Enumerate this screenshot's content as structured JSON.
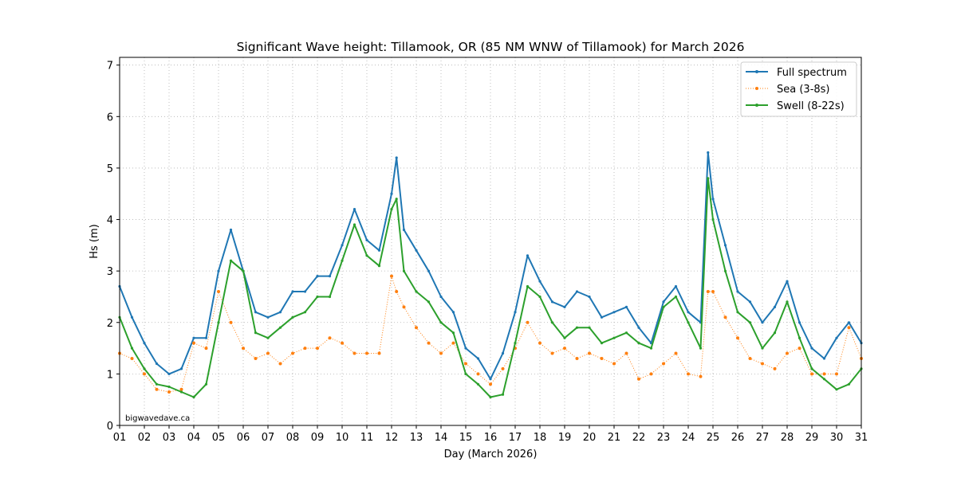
{
  "chart_data": {
    "type": "line",
    "title": "Significant Wave height: Tillamook, OR (85 NM WNW of Tillamook) for March 2026",
    "xlabel": "Day (March 2026)",
    "ylabel": "Hs (m)",
    "xlim": [
      1,
      31
    ],
    "ylim": [
      0,
      7.15
    ],
    "grid": true,
    "legend_position": "top-right",
    "watermark": "bigwavedave.ca",
    "x_tick_values": [
      1,
      2,
      3,
      4,
      5,
      6,
      7,
      8,
      9,
      10,
      11,
      12,
      13,
      14,
      15,
      16,
      17,
      18,
      19,
      20,
      21,
      22,
      23,
      24,
      25,
      26,
      27,
      28,
      29,
      30,
      31
    ],
    "x_tick_labels": [
      "01",
      "02",
      "03",
      "04",
      "05",
      "06",
      "07",
      "08",
      "09",
      "10",
      "11",
      "12",
      "13",
      "14",
      "15",
      "16",
      "17",
      "18",
      "19",
      "20",
      "21",
      "22",
      "23",
      "24",
      "25",
      "26",
      "27",
      "28",
      "29",
      "30",
      "31"
    ],
    "y_tick_values": [
      0,
      1,
      2,
      3,
      4,
      5,
      6,
      7
    ],
    "y_tick_labels": [
      "0",
      "1",
      "2",
      "3",
      "4",
      "5",
      "6",
      "7"
    ],
    "x": [
      1,
      1.5,
      2,
      2.5,
      3,
      3.5,
      4,
      4.5,
      5,
      5.5,
      6,
      6.5,
      7,
      7.5,
      8,
      8.5,
      9,
      9.5,
      10,
      10.5,
      11,
      11.5,
      12,
      12.2,
      12.5,
      13,
      13.5,
      14,
      14.5,
      15,
      15.5,
      16,
      16.5,
      17,
      17.5,
      18,
      18.5,
      19,
      19.5,
      20,
      20.5,
      21,
      21.5,
      22,
      22.5,
      23,
      23.5,
      24,
      24.5,
      24.8,
      25,
      25.5,
      26,
      26.5,
      27,
      27.5,
      28,
      28.5,
      29,
      29.5,
      30,
      30.5,
      31
    ],
    "series": [
      {
        "name": "Full spectrum",
        "color": "#1f77b4",
        "style": "solid",
        "values": [
          2.7,
          2.1,
          1.6,
          1.2,
          1.0,
          1.1,
          1.7,
          1.7,
          3.0,
          3.8,
          3.0,
          2.2,
          2.1,
          2.2,
          2.6,
          2.6,
          2.9,
          2.9,
          3.5,
          4.2,
          3.6,
          3.4,
          4.5,
          5.2,
          3.8,
          3.4,
          3.0,
          2.5,
          2.2,
          1.5,
          1.3,
          0.9,
          1.4,
          2.2,
          3.3,
          2.8,
          2.4,
          2.3,
          2.6,
          2.5,
          2.1,
          2.2,
          2.3,
          1.9,
          1.6,
          2.4,
          2.7,
          2.2,
          2.0,
          5.3,
          4.4,
          3.5,
          2.6,
          2.4,
          2.0,
          2.3,
          2.8,
          2.0,
          1.5,
          1.3,
          1.7,
          2.0,
          1.6
        ]
      },
      {
        "name": "Sea (3-8s)",
        "color": "#ff7f0e",
        "style": "dotted",
        "values": [
          1.4,
          1.3,
          1.0,
          0.7,
          0.65,
          0.7,
          1.6,
          1.5,
          2.6,
          2.0,
          1.5,
          1.3,
          1.4,
          1.2,
          1.4,
          1.5,
          1.5,
          1.7,
          1.6,
          1.4,
          1.4,
          1.4,
          2.9,
          2.6,
          2.3,
          1.9,
          1.6,
          1.4,
          1.6,
          1.2,
          1.0,
          0.8,
          1.1,
          1.5,
          2.0,
          1.6,
          1.4,
          1.5,
          1.3,
          1.4,
          1.3,
          1.2,
          1.4,
          0.9,
          1.0,
          1.2,
          1.4,
          1.0,
          0.95,
          2.6,
          2.6,
          2.1,
          1.7,
          1.3,
          1.2,
          1.1,
          1.4,
          1.5,
          1.0,
          1.0,
          1.0,
          1.9,
          1.3
        ]
      },
      {
        "name": "Swell (8-22s)",
        "color": "#2ca02c",
        "style": "solid",
        "values": [
          2.1,
          1.5,
          1.1,
          0.8,
          0.75,
          0.65,
          0.55,
          0.8,
          2.0,
          3.2,
          3.0,
          1.8,
          1.7,
          1.9,
          2.1,
          2.2,
          2.5,
          2.5,
          3.2,
          3.9,
          3.3,
          3.1,
          4.2,
          4.4,
          3.0,
          2.6,
          2.4,
          2.0,
          1.8,
          1.0,
          0.8,
          0.55,
          0.6,
          1.6,
          2.7,
          2.5,
          2.0,
          1.7,
          1.9,
          1.9,
          1.6,
          1.7,
          1.8,
          1.6,
          1.5,
          2.3,
          2.5,
          2.0,
          1.5,
          4.8,
          4.0,
          3.0,
          2.2,
          2.0,
          1.5,
          1.8,
          2.4,
          1.7,
          1.1,
          0.9,
          0.7,
          0.8,
          1.1
        ]
      }
    ]
  }
}
